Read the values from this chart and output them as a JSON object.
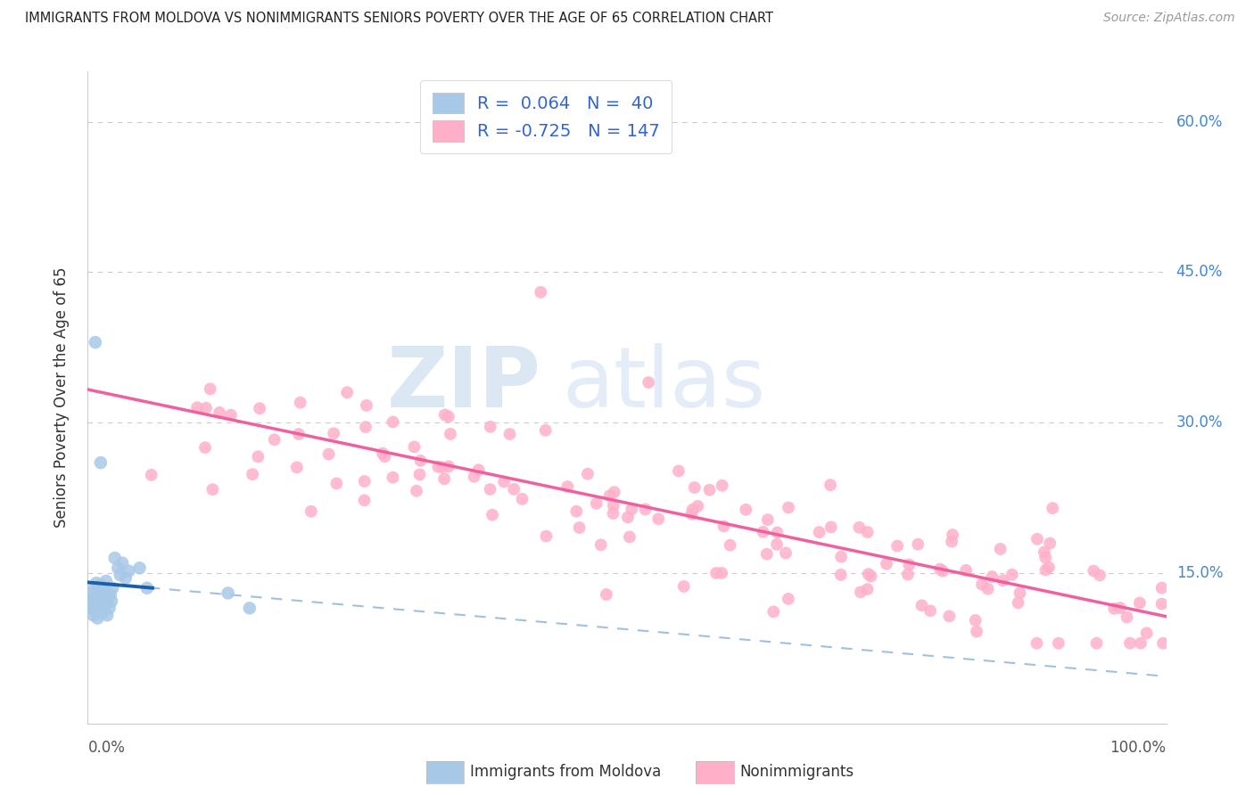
{
  "title": "IMMIGRANTS FROM MOLDOVA VS NONIMMIGRANTS SENIORS POVERTY OVER THE AGE OF 65 CORRELATION CHART",
  "source": "Source: ZipAtlas.com",
  "ylabel": "Seniors Poverty Over the Age of 65",
  "legend_R_blue": "0.064",
  "legend_N_blue": "40",
  "legend_R_pink": "-0.725",
  "legend_N_pink": "147",
  "blue_color": "#A8C8E8",
  "pink_color": "#FFB0C8",
  "blue_line_color": "#1A5FA8",
  "pink_line_color": "#F060A0",
  "dashed_line_color": "#A0C0E0",
  "watermark_zip": "ZIP",
  "watermark_atlas": "atlas",
  "background_color": "#FFFFFF",
  "ylim": [
    0.0,
    0.65
  ],
  "xlim": [
    0.0,
    1.0
  ],
  "ytick_vals": [
    0.15,
    0.3,
    0.45,
    0.6
  ],
  "ytick_labels": [
    "15.0%",
    "30.0%",
    "45.0%",
    "60.0%"
  ],
  "grid_color": "#CCCCCC",
  "spine_color": "#CCCCCC",
  "title_color": "#222222",
  "source_color": "#999999",
  "right_label_color": "#4488CC",
  "bottom_label_color": "#555555"
}
